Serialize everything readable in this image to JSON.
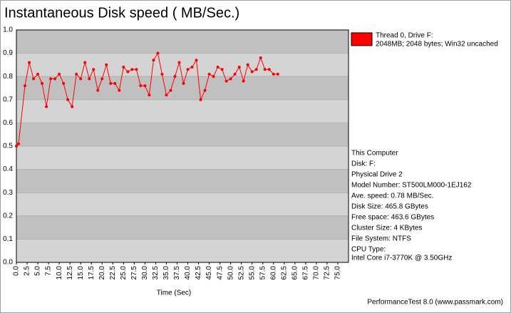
{
  "chart_data": {
    "type": "line",
    "title": "Instantaneous Disk speed ( MB/Sec.)",
    "x_label": "Time (Sec)",
    "xlim": [
      0,
      77.5
    ],
    "ylim": [
      0,
      1
    ],
    "xticks": [
      {
        "value": 0,
        "label": "0.0"
      },
      2.5,
      {
        "value": 5,
        "label": "5.0"
      },
      7.5,
      {
        "value": 10,
        "label": "10.0"
      },
      12.5,
      {
        "value": 15,
        "label": "15.0"
      },
      17.5,
      {
        "value": 20,
        "label": "20.0"
      },
      22.5,
      {
        "value": 25,
        "label": "25.0"
      },
      27.5,
      {
        "value": 30,
        "label": "30.0"
      },
      32.5,
      {
        "value": 35,
        "label": "35.0"
      },
      37.5,
      {
        "value": 40,
        "label": "40.0"
      },
      42.5,
      {
        "value": 45,
        "label": "45.0"
      },
      47.5,
      {
        "value": 50,
        "label": "50.0"
      },
      52.5,
      {
        "value": 55,
        "label": "55.0"
      },
      57.5,
      {
        "value": 60,
        "label": "60.0"
      },
      62.5,
      {
        "value": 65,
        "label": "65.0"
      },
      67.5,
      {
        "value": 70,
        "label": "70.0"
      },
      72.5,
      {
        "value": 75,
        "label": "75.0"
      }
    ],
    "yticks": [
      {
        "value": 0,
        "label": "0.0"
      },
      0.1,
      0.2,
      0.3,
      0.4,
      0.5,
      0.6,
      0.7,
      0.8,
      0.9,
      {
        "value": 1,
        "label": "1.0"
      }
    ],
    "x": [
      0,
      0.5,
      2,
      3,
      4,
      5,
      6,
      7,
      8,
      9,
      10,
      11,
      12,
      13,
      14,
      15,
      16,
      17,
      18,
      19,
      20,
      21,
      22,
      23,
      24,
      25,
      26,
      27,
      28,
      29,
      30,
      31,
      32,
      33,
      34,
      35,
      36,
      37,
      38,
      39,
      40,
      41,
      42,
      43,
      44,
      45,
      46,
      47,
      48,
      49,
      50,
      51,
      52,
      53,
      54,
      55,
      56,
      57,
      58,
      59,
      60,
      61
    ],
    "series": [
      {
        "name": "Thread 0, Drive F:",
        "description": "2048MB; 2048 bytes; Win32 uncached",
        "color": "#ff0000",
        "values": [
          0.5,
          0.51,
          0.76,
          0.86,
          0.79,
          0.81,
          0.77,
          0.67,
          0.79,
          0.79,
          0.81,
          0.77,
          0.7,
          0.67,
          0.81,
          0.79,
          0.86,
          0.79,
          0.83,
          0.74,
          0.79,
          0.85,
          0.77,
          0.77,
          0.74,
          0.84,
          0.82,
          0.83,
          0.83,
          0.76,
          0.76,
          0.72,
          0.87,
          0.9,
          0.81,
          0.72,
          0.74,
          0.8,
          0.86,
          0.77,
          0.83,
          0.84,
          0.87,
          0.7,
          0.74,
          0.81,
          0.8,
          0.84,
          0.83,
          0.78,
          0.79,
          0.81,
          0.84,
          0.78,
          0.85,
          0.82,
          0.83,
          0.88,
          0.83,
          0.83,
          0.81,
          0.81
        ]
      }
    ],
    "info": [
      "This Computer",
      "Disk: F:",
      "Physical Drive 2",
      "Model Number: ST500LM000-1EJ162",
      "Ave. speed: 0.78 MB/Sec.",
      "Disk Size: 465.8 GBytes",
      "Free space: 463.6 GBytes",
      "Cluster Size: 4 KBytes",
      "File System: NTFS",
      "CPU Type:",
      "Intel Core i7-3770K @ 3.50GHz"
    ],
    "footer": "PerformanceTest 8.0 (www.passmark.com)"
  }
}
